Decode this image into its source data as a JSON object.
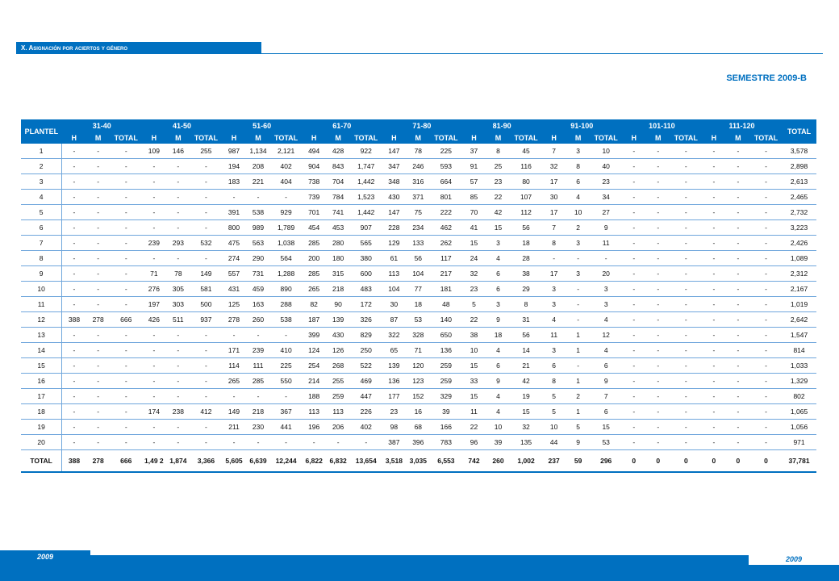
{
  "section_title": "X.   Asignación por aciertos y género",
  "semester": "SEMESTRE 2009-B",
  "header": {
    "plantel": "PLANTEL",
    "total": "TOTAL",
    "groups": [
      "31-40",
      "41-50",
      "51-60",
      "61-70",
      "71-80",
      "81-90",
      "91-100",
      "101-110",
      "111-120"
    ],
    "sub": [
      "H",
      "M",
      "TOTAL"
    ]
  },
  "rows": [
    [
      "1",
      "-",
      "-",
      "-",
      "109",
      "146",
      "255",
      "987",
      "1,134",
      "2,121",
      "494",
      "428",
      "922",
      "147",
      "78",
      "225",
      "37",
      "8",
      "45",
      "7",
      "3",
      "10",
      "-",
      "-",
      "-",
      "-",
      "-",
      "-",
      "3,578"
    ],
    [
      "2",
      "-",
      "-",
      "-",
      "-",
      "-",
      "-",
      "194",
      "208",
      "402",
      "904",
      "843",
      "1,747",
      "347",
      "246",
      "593",
      "91",
      "25",
      "116",
      "32",
      "8",
      "40",
      "-",
      "-",
      "-",
      "-",
      "-",
      "-",
      "2,898"
    ],
    [
      "3",
      "-",
      "-",
      "-",
      "-",
      "-",
      "-",
      "183",
      "221",
      "404",
      "738",
      "704",
      "1,442",
      "348",
      "316",
      "664",
      "57",
      "23",
      "80",
      "17",
      "6",
      "23",
      "-",
      "-",
      "-",
      "-",
      "-",
      "-",
      "2,613"
    ],
    [
      "4",
      "-",
      "-",
      "-",
      "-",
      "-",
      "-",
      "-",
      "-",
      "-",
      "739",
      "784",
      "1,523",
      "430",
      "371",
      "801",
      "85",
      "22",
      "107",
      "30",
      "4",
      "34",
      "-",
      "-",
      "-",
      "-",
      "-",
      "-",
      "2,465"
    ],
    [
      "5",
      "-",
      "-",
      "-",
      "-",
      "-",
      "-",
      "391",
      "538",
      "929",
      "701",
      "741",
      "1,442",
      "147",
      "75",
      "222",
      "70",
      "42",
      "112",
      "17",
      "10",
      "27",
      "-",
      "-",
      "-",
      "-",
      "-",
      "-",
      "2,732"
    ],
    [
      "6",
      "-",
      "-",
      "-",
      "-",
      "-",
      "-",
      "800",
      "989",
      "1,789",
      "454",
      "453",
      "907",
      "228",
      "234",
      "462",
      "41",
      "15",
      "56",
      "7",
      "2",
      "9",
      "-",
      "-",
      "-",
      "-",
      "-",
      "-",
      "3,223"
    ],
    [
      "7",
      "-",
      "-",
      "-",
      "239",
      "293",
      "532",
      "475",
      "563",
      "1,038",
      "285",
      "280",
      "565",
      "129",
      "133",
      "262",
      "15",
      "3",
      "18",
      "8",
      "3",
      "11",
      "-",
      "-",
      "-",
      "-",
      "-",
      "-",
      "2,426"
    ],
    [
      "8",
      "-",
      "-",
      "-",
      "-",
      "-",
      "-",
      "274",
      "290",
      "564",
      "200",
      "180",
      "380",
      "61",
      "56",
      "117",
      "24",
      "4",
      "28",
      "-",
      "-",
      "-",
      "-",
      "-",
      "-",
      "-",
      "-",
      "-",
      "1,089"
    ],
    [
      "9",
      "-",
      "-",
      "-",
      "71",
      "78",
      "149",
      "557",
      "731",
      "1,288",
      "285",
      "315",
      "600",
      "113",
      "104",
      "217",
      "32",
      "6",
      "38",
      "17",
      "3",
      "20",
      "-",
      "-",
      "-",
      "-",
      "-",
      "-",
      "2,312"
    ],
    [
      "10",
      "-",
      "-",
      "-",
      "276",
      "305",
      "581",
      "431",
      "459",
      "890",
      "265",
      "218",
      "483",
      "104",
      "77",
      "181",
      "23",
      "6",
      "29",
      "3",
      "-",
      "3",
      "-",
      "-",
      "-",
      "-",
      "-",
      "-",
      "2,167"
    ],
    [
      "11",
      "-",
      "-",
      "-",
      "197",
      "303",
      "500",
      "125",
      "163",
      "288",
      "82",
      "90",
      "172",
      "30",
      "18",
      "48",
      "5",
      "3",
      "8",
      "3",
      "-",
      "3",
      "-",
      "-",
      "-",
      "-",
      "-",
      "-",
      "1,019"
    ],
    [
      "12",
      "388",
      "278",
      "666",
      "426",
      "511",
      "937",
      "278",
      "260",
      "538",
      "187",
      "139",
      "326",
      "87",
      "53",
      "140",
      "22",
      "9",
      "31",
      "4",
      "-",
      "4",
      "-",
      "-",
      "-",
      "-",
      "-",
      "-",
      "2,642"
    ],
    [
      "13",
      "-",
      "-",
      "-",
      "-",
      "-",
      "-",
      "-",
      "-",
      "-",
      "399",
      "430",
      "829",
      "322",
      "328",
      "650",
      "38",
      "18",
      "56",
      "11",
      "1",
      "12",
      "-",
      "-",
      "-",
      "-",
      "-",
      "-",
      "1,547"
    ],
    [
      "14",
      "-",
      "-",
      "-",
      "-",
      "-",
      "-",
      "171",
      "239",
      "410",
      "124",
      "126",
      "250",
      "65",
      "71",
      "136",
      "10",
      "4",
      "14",
      "3",
      "1",
      "4",
      "-",
      "-",
      "-",
      "-",
      "-",
      "-",
      "814"
    ],
    [
      "15",
      "-",
      "-",
      "-",
      "-",
      "-",
      "-",
      "114",
      "111",
      "225",
      "254",
      "268",
      "522",
      "139",
      "120",
      "259",
      "15",
      "6",
      "21",
      "6",
      "-",
      "6",
      "-",
      "-",
      "-",
      "-",
      "-",
      "-",
      "1,033"
    ],
    [
      "16",
      "-",
      "-",
      "-",
      "-",
      "-",
      "-",
      "265",
      "285",
      "550",
      "214",
      "255",
      "469",
      "136",
      "123",
      "259",
      "33",
      "9",
      "42",
      "8",
      "1",
      "9",
      "-",
      "-",
      "-",
      "-",
      "-",
      "-",
      "1,329"
    ],
    [
      "17",
      "-",
      "-",
      "-",
      "-",
      "-",
      "-",
      "-",
      "-",
      "-",
      "188",
      "259",
      "447",
      "177",
      "152",
      "329",
      "15",
      "4",
      "19",
      "5",
      "2",
      "7",
      "-",
      "-",
      "-",
      "-",
      "-",
      "-",
      "802"
    ],
    [
      "18",
      "-",
      "-",
      "-",
      "174",
      "238",
      "412",
      "149",
      "218",
      "367",
      "113",
      "113",
      "226",
      "23",
      "16",
      "39",
      "11",
      "4",
      "15",
      "5",
      "1",
      "6",
      "-",
      "-",
      "-",
      "-",
      "-",
      "-",
      "1,065"
    ],
    [
      "19",
      "-",
      "-",
      "-",
      "-",
      "-",
      "-",
      "211",
      "230",
      "441",
      "196",
      "206",
      "402",
      "98",
      "68",
      "166",
      "22",
      "10",
      "32",
      "10",
      "5",
      "15",
      "-",
      "-",
      "-",
      "-",
      "-",
      "-",
      "1,056"
    ],
    [
      "20",
      "-",
      "-",
      "-",
      "-",
      "-",
      "-",
      "-",
      "-",
      "-",
      "-",
      "-",
      "-",
      "387",
      "396",
      "783",
      "96",
      "39",
      "135",
      "44",
      "9",
      "53",
      "-",
      "-",
      "-",
      "-",
      "-",
      "-",
      "971"
    ]
  ],
  "total_row": [
    "TOTAL",
    "388",
    "278",
    "666",
    "1,49 2",
    "1,874",
    "3,366",
    "5,605",
    "6,639",
    "12,244",
    "6,822",
    "6,832",
    "13,654",
    "3,518",
    "3,035",
    "6,553",
    "742",
    "260",
    "1,002",
    "237",
    "59",
    "296",
    "0",
    "0",
    "0",
    "0",
    "0",
    "0",
    "37,781"
  ],
  "footer": {
    "left_year": "2009",
    "right_year": "2009"
  }
}
